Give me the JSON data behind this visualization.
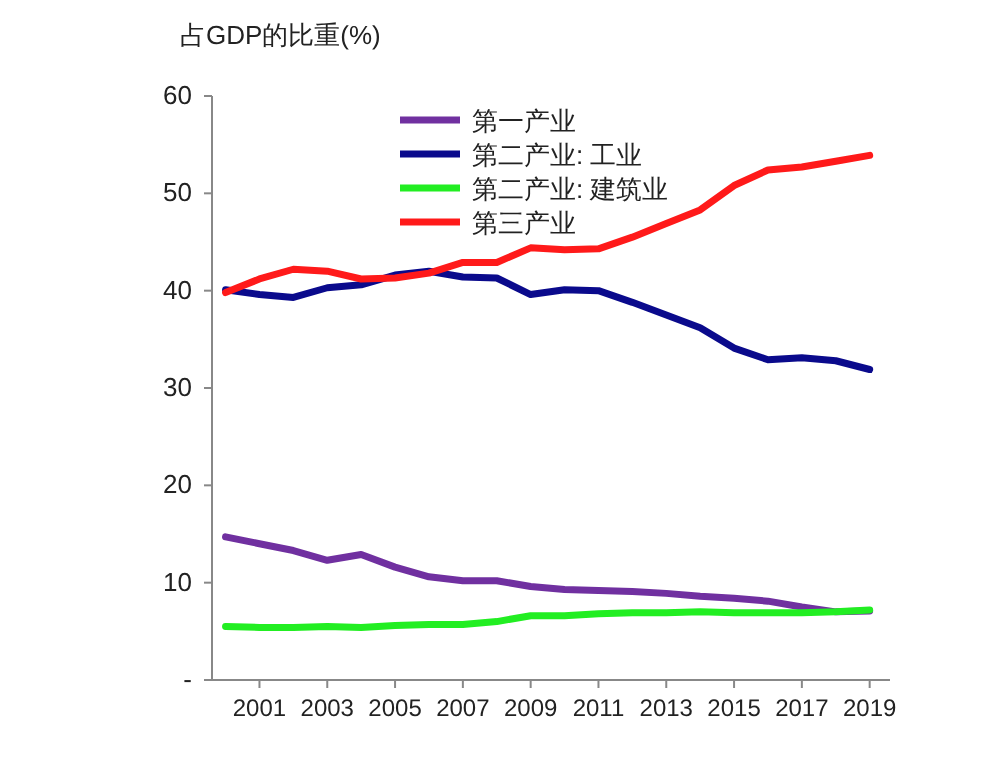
{
  "chart_data": {
    "type": "line",
    "ylabel": "占GDP的比重(%)",
    "x": [
      2000,
      2001,
      2002,
      2003,
      2004,
      2005,
      2006,
      2007,
      2008,
      2009,
      2010,
      2011,
      2012,
      2013,
      2014,
      2015,
      2016,
      2017,
      2018,
      2019
    ],
    "series": [
      {
        "name": "第一产业",
        "color": "#7030a0",
        "values": [
          14.7,
          14.0,
          13.3,
          12.3,
          12.9,
          11.6,
          10.6,
          10.2,
          10.2,
          9.6,
          9.3,
          9.2,
          9.1,
          8.9,
          8.6,
          8.4,
          8.1,
          7.5,
          7.0,
          7.1
        ]
      },
      {
        "name": "第二产业: 工业",
        "color": "#0a0a8c",
        "values": [
          40.1,
          39.6,
          39.3,
          40.3,
          40.6,
          41.6,
          42.0,
          41.4,
          41.3,
          39.6,
          40.1,
          40.0,
          38.8,
          37.5,
          36.2,
          34.1,
          32.9,
          33.1,
          32.8,
          31.9
        ]
      },
      {
        "name": "第二产业: 建筑业",
        "color": "#22ee22",
        "values": [
          5.5,
          5.4,
          5.4,
          5.5,
          5.4,
          5.6,
          5.7,
          5.7,
          6.0,
          6.6,
          6.6,
          6.8,
          6.9,
          6.9,
          7.0,
          6.9,
          6.9,
          6.9,
          7.0,
          7.2
        ]
      },
      {
        "name": "第三产业",
        "color": "#ff1a1a",
        "values": [
          39.8,
          41.2,
          42.2,
          42.0,
          41.2,
          41.3,
          41.8,
          42.9,
          42.9,
          44.4,
          44.2,
          44.3,
          45.5,
          46.9,
          48.3,
          50.8,
          52.4,
          52.7,
          53.3,
          53.9
        ]
      }
    ],
    "xlim": [
      1999.6,
      2019.6
    ],
    "xticks": [
      2001,
      2003,
      2005,
      2007,
      2009,
      2011,
      2013,
      2015,
      2017,
      2019
    ],
    "ylim": [
      0,
      60
    ],
    "yticks": [
      {
        "value": 0,
        "label": "-"
      },
      10,
      20,
      30,
      40,
      50,
      60
    ],
    "legend": "top",
    "grid": false,
    "marker": "none",
    "line_style": "solid"
  }
}
